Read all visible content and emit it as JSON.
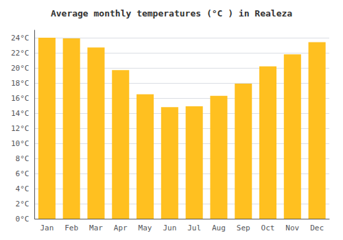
{
  "chart_data": {
    "type": "bar",
    "title": "Average monthly temperatures (°C ) in Realeza",
    "categories": [
      "Jan",
      "Feb",
      "Mar",
      "Apr",
      "May",
      "Jun",
      "Jul",
      "Aug",
      "Sep",
      "Oct",
      "Nov",
      "Dec"
    ],
    "values": [
      24.0,
      23.9,
      22.7,
      19.7,
      16.5,
      14.8,
      14.9,
      16.3,
      17.9,
      20.2,
      21.8,
      23.4
    ],
    "color": "#FFC020",
    "ylim": [
      0,
      25
    ],
    "yticks": [
      {
        "value": 0,
        "label": "0°C"
      },
      {
        "value": 2,
        "label": "2°C"
      },
      {
        "value": 4,
        "label": "4°C"
      },
      {
        "value": 6,
        "label": "6°C"
      },
      {
        "value": 8,
        "label": "8°C"
      },
      {
        "value": 10,
        "label": "10°C"
      },
      {
        "value": 12,
        "label": "12°C"
      },
      {
        "value": 14,
        "label": "14°C"
      },
      {
        "value": 16,
        "label": "16°C"
      },
      {
        "value": 18,
        "label": "18°C"
      },
      {
        "value": 20,
        "label": "20°C"
      },
      {
        "value": 22,
        "label": "22°C"
      },
      {
        "value": 24,
        "label": "24°C"
      }
    ],
    "grid": true
  }
}
